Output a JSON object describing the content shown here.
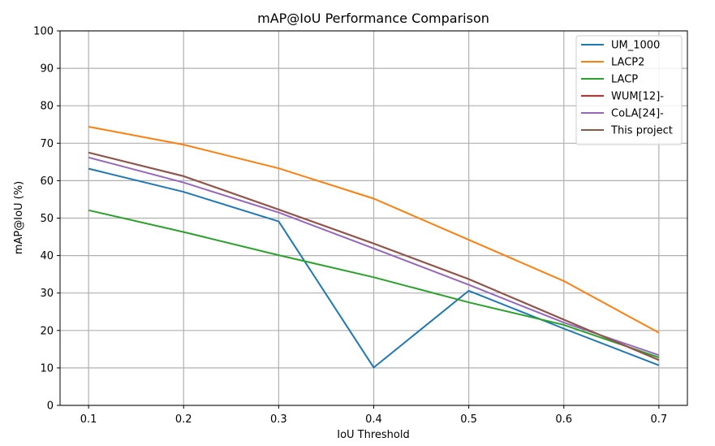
{
  "chart_data": {
    "type": "line",
    "title": "mAP@IoU Performance Comparison",
    "xlabel": "IoU Threshold",
    "ylabel": "mAP@IoU (%)",
    "x": [
      0.1,
      0.2,
      0.3,
      0.4,
      0.5,
      0.6,
      0.7
    ],
    "x_ticks": [
      "0.1",
      "0.2",
      "0.3",
      "0.4",
      "0.5",
      "0.6",
      "0.7"
    ],
    "xlim": [
      0.07,
      0.73
    ],
    "ylim": [
      0,
      100
    ],
    "y_ticks": [
      "0",
      "10",
      "20",
      "30",
      "40",
      "50",
      "60",
      "70",
      "80",
      "90",
      "100"
    ],
    "grid": true,
    "legend_position": "top-right",
    "series": [
      {
        "name": "UM_1000",
        "color": "#1f77b4",
        "values": [
          63.2,
          57.0,
          49.1,
          10.1,
          30.6,
          20.5,
          10.7
        ]
      },
      {
        "name": "LACP2",
        "color": "#ff7f0e",
        "values": [
          74.4,
          69.6,
          63.3,
          55.2,
          44.2,
          33.2,
          19.4
        ]
      },
      {
        "name": "LACP",
        "color": "#2ca02c",
        "values": [
          52.1,
          46.3,
          40.1,
          34.2,
          27.5,
          21.5,
          12.8
        ]
      },
      {
        "name": "WUM[12]-",
        "color": "#d62728",
        "values": [
          67.5,
          61.2,
          52.3,
          43.2,
          33.7,
          22.9,
          12.1
        ]
      },
      {
        "name": "CoLA[24]-",
        "color": "#9467bd",
        "values": [
          66.2,
          59.5,
          51.5,
          41.9,
          32.2,
          22.1,
          13.4
        ]
      },
      {
        "name": "This project",
        "color": "#8c564b",
        "values": [
          67.5,
          61.2,
          52.3,
          43.2,
          33.7,
          22.9,
          12.1
        ]
      }
    ]
  }
}
